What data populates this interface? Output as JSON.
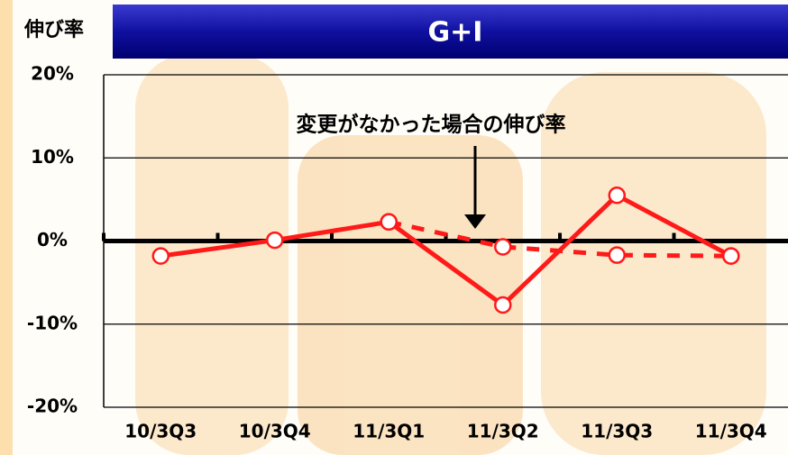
{
  "chart_data": {
    "type": "line",
    "title": "G+I",
    "y_label": "伸び率",
    "annotation": "変更がなかった場合の伸び率",
    "categories": [
      "10/3Q3",
      "10/3Q4",
      "11/3Q1",
      "11/3Q2",
      "11/3Q3",
      "11/3Q4"
    ],
    "series": [
      {
        "color": "#ff1a1a",
        "line_style": "solid",
        "values": [
          -1.8,
          0.1,
          2.3,
          -7.7,
          5.5,
          -1.8
        ]
      },
      {
        "color": "#ff1a1a",
        "line_style": "dashed",
        "values": [
          null,
          null,
          2.3,
          -0.7,
          -1.7,
          -1.8
        ]
      }
    ],
    "ylim": [
      -20,
      20
    ],
    "yticks": [
      {
        "value": -20,
        "label": "-20%"
      },
      {
        "value": -10,
        "label": "-10%"
      },
      {
        "value": 0,
        "label": "0%"
      },
      {
        "value": 10,
        "label": "10%"
      },
      {
        "value": 20,
        "label": "20%"
      }
    ],
    "grid": true
  }
}
